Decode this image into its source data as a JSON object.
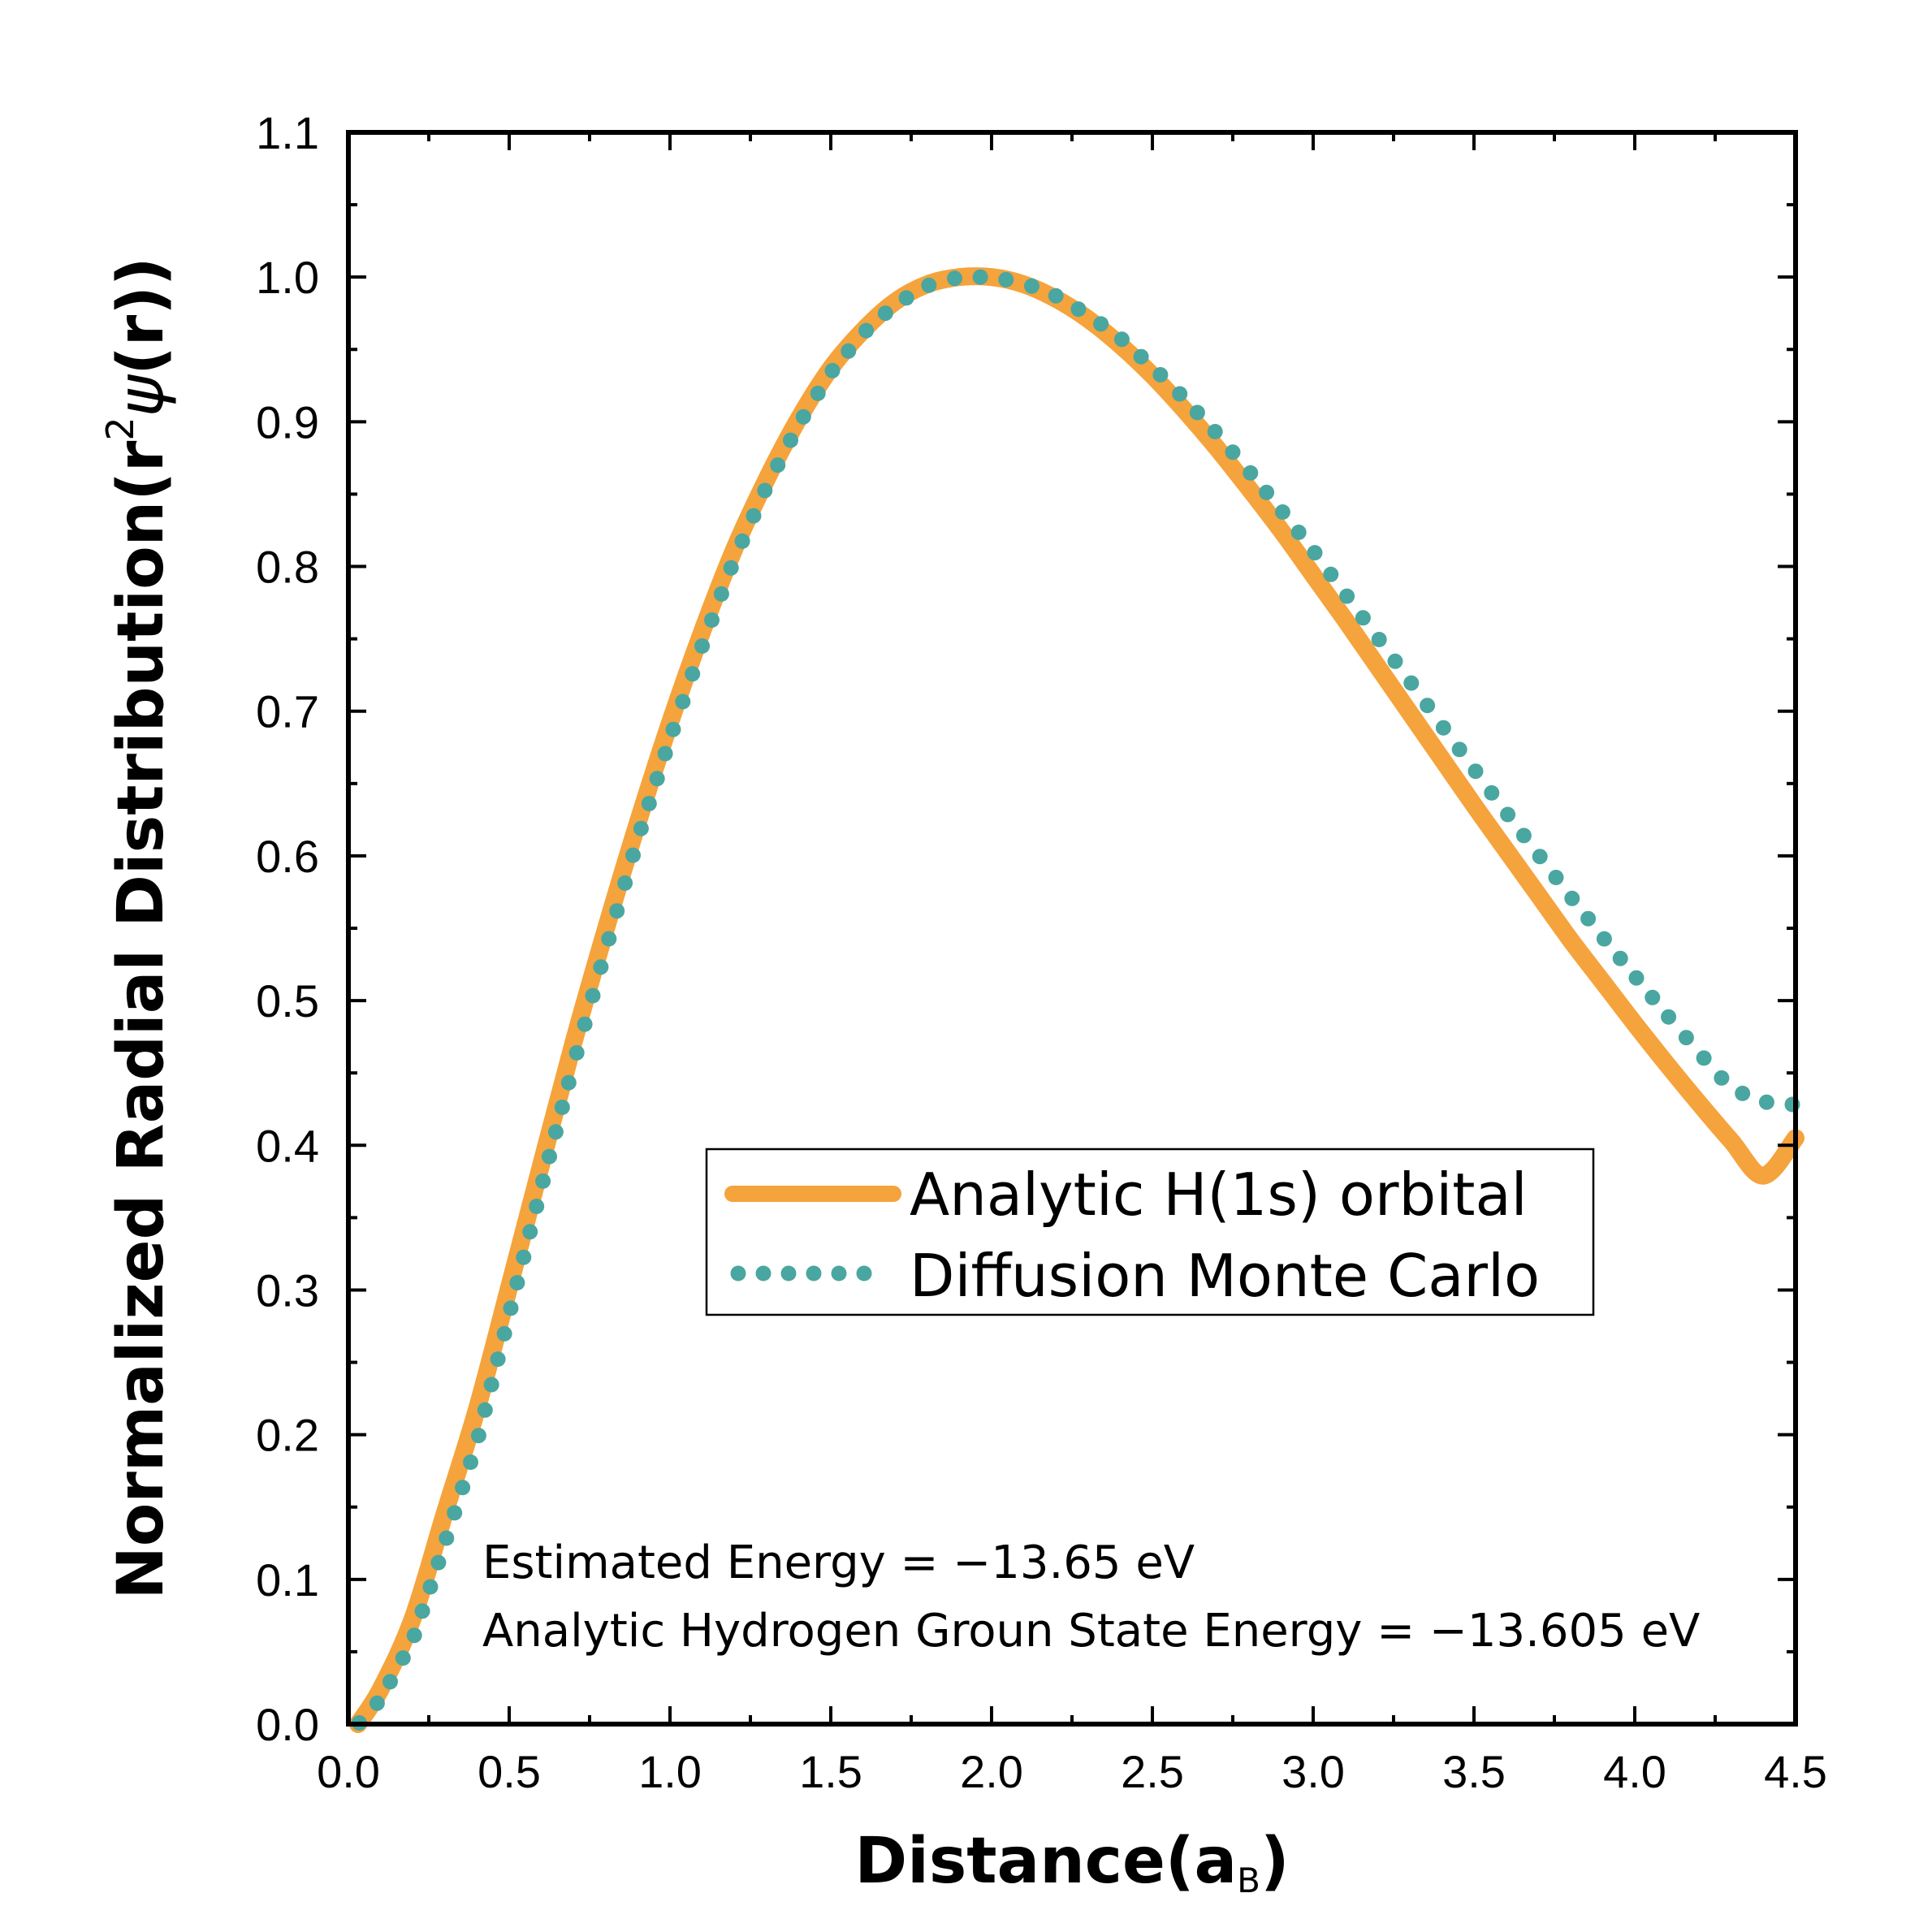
{
  "chart_data": {
    "type": "line",
    "xlabel": {
      "main": "Distance(a",
      "sub": "B",
      "close": ")"
    },
    "ylabel": {
      "main": "Normalized Radial Distribution(r",
      "sup": "2",
      "psi": "ψ",
      "close": "(r))"
    },
    "xlim": [
      0.0,
      4.5
    ],
    "ylim": [
      0.0,
      1.1
    ],
    "xticks": [
      "0.0",
      "0.5",
      "1.0",
      "1.5",
      "2.0",
      "2.5",
      "3.0",
      "3.5",
      "4.0",
      "4.5"
    ],
    "yticks": [
      "0.0",
      "0.1",
      "0.2",
      "0.3",
      "0.4",
      "0.5",
      "0.6",
      "0.7",
      "0.8",
      "0.9",
      "1.0",
      "1.1"
    ],
    "series": [
      {
        "name": "Analytic H(1s) orbital",
        "style": "solid",
        "color": "#f5a33c",
        "x": [
          0.03,
          0.1,
          0.2,
          0.3,
          0.4,
          0.5,
          0.6,
          0.7,
          0.8,
          0.9,
          1.0,
          1.1,
          1.2,
          1.3,
          1.4,
          1.5,
          1.6,
          1.7,
          1.8,
          1.9,
          2.0,
          2.1,
          2.2,
          2.3,
          2.4,
          2.5,
          2.6,
          2.7,
          2.8,
          2.9,
          3.0,
          3.1,
          3.2,
          3.3,
          3.4,
          3.5,
          3.6,
          3.7,
          3.8,
          3.9,
          4.0,
          4.1,
          4.2,
          4.3,
          4.4,
          4.5
        ],
        "y": [
          0.0,
          0.024,
          0.073,
          0.146,
          0.218,
          0.302,
          0.387,
          0.471,
          0.549,
          0.623,
          0.692,
          0.755,
          0.812,
          0.86,
          0.902,
          0.937,
          0.963,
          0.983,
          0.995,
          1.0,
          1.0,
          0.995,
          0.985,
          0.971,
          0.953,
          0.932,
          0.908,
          0.882,
          0.854,
          0.825,
          0.794,
          0.763,
          0.731,
          0.699,
          0.667,
          0.635,
          0.604,
          0.573,
          0.542,
          0.513,
          0.484,
          0.456,
          0.429,
          0.403,
          0.379,
          0.405
        ]
      },
      {
        "name": "Diffusion Monte Carlo",
        "style": "dotted",
        "color": "#4aa6a0",
        "x": [
          0.03,
          0.1,
          0.2,
          0.3,
          0.4,
          0.5,
          0.6,
          0.7,
          0.8,
          0.9,
          1.0,
          1.1,
          1.2,
          1.3,
          1.4,
          1.5,
          1.6,
          1.7,
          1.8,
          1.9,
          2.0,
          2.1,
          2.2,
          2.3,
          2.4,
          2.5,
          2.6,
          2.7,
          2.8,
          2.9,
          3.0,
          3.1,
          3.2,
          3.3,
          3.4,
          3.5,
          3.6,
          3.7,
          3.8,
          3.9,
          4.0,
          4.1,
          4.2,
          4.3,
          4.4,
          4.5
        ],
        "y": [
          0.0,
          0.017,
          0.058,
          0.125,
          0.195,
          0.283,
          0.371,
          0.456,
          0.535,
          0.612,
          0.681,
          0.745,
          0.805,
          0.855,
          0.898,
          0.934,
          0.961,
          0.981,
          0.994,
          1.0,
          1.0,
          0.996,
          0.987,
          0.974,
          0.958,
          0.938,
          0.916,
          0.892,
          0.866,
          0.839,
          0.811,
          0.781,
          0.751,
          0.721,
          0.69,
          0.66,
          0.63,
          0.601,
          0.572,
          0.544,
          0.517,
          0.49,
          0.464,
          0.439,
          0.43,
          0.428
        ]
      }
    ],
    "legend": {
      "position": "center",
      "entries": [
        "Analytic H(1s) orbital",
        "Diffusion Monte Carlo"
      ]
    },
    "annotations": [
      "Estimated Energy = −13.65 eV",
      "Analytic Hydrogen Groun State Energy = −13.605 eV"
    ],
    "grid": false
  }
}
